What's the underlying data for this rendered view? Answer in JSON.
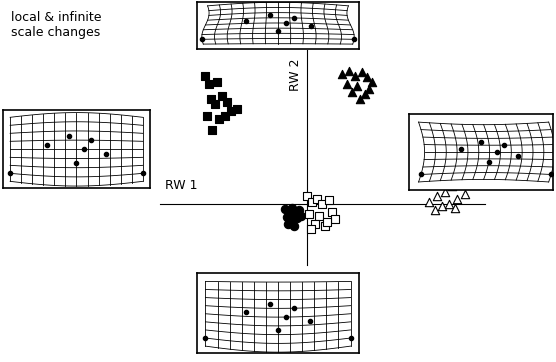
{
  "chart_data": {
    "type": "scatter",
    "title": "local & infinite\nscale changes",
    "x_label": "RW 1",
    "y_label": "RW 2",
    "xlim": [
      -1.47,
      1.78
    ],
    "ylim": [
      -0.61,
      1.54
    ],
    "xticks": [],
    "yticks": [],
    "tick_labels": false,
    "grid": false,
    "series": [
      {
        "marker": "s",
        "color": "black",
        "x": [
          -1.02,
          -0.98,
          -0.9,
          -0.96,
          -0.85,
          -0.92,
          -0.8,
          -0.76,
          -0.7,
          -0.88,
          -1.0,
          -0.95,
          -0.82
        ],
        "y": [
          1.28,
          1.2,
          1.22,
          1.05,
          1.08,
          1.0,
          1.02,
          0.93,
          0.95,
          0.85,
          0.88,
          0.74,
          0.88
        ]
      },
      {
        "marker": "^",
        "color": "black",
        "x": [
          0.35,
          0.42,
          0.48,
          0.55,
          0.6,
          0.65,
          0.4,
          0.5,
          0.58,
          0.45,
          0.62,
          0.53
        ],
        "y": [
          1.3,
          1.33,
          1.28,
          1.32,
          1.27,
          1.22,
          1.2,
          1.18,
          1.1,
          1.12,
          1.15,
          1.05
        ]
      },
      {
        "marker": "o",
        "color": "black",
        "x": [
          -0.22,
          -0.18,
          -0.15,
          -0.12,
          -0.2,
          -0.1,
          -0.16,
          -0.08,
          -0.19,
          -0.13,
          -0.06,
          -0.17
        ],
        "y": [
          -0.05,
          -0.08,
          -0.04,
          -0.1,
          -0.13,
          -0.14,
          -0.17,
          -0.06,
          -0.2,
          -0.22,
          -0.12,
          -0.09
        ]
      },
      {
        "marker": "s",
        "color": "white",
        "x": [
          0.0,
          0.05,
          0.1,
          0.15,
          0.22,
          0.02,
          0.12,
          0.25,
          0.08,
          0.18,
          0.28,
          0.04,
          0.2
        ],
        "y": [
          0.08,
          0.02,
          0.05,
          0.0,
          0.04,
          -0.1,
          -0.12,
          -0.08,
          -0.2,
          -0.22,
          -0.15,
          -0.25,
          -0.18
        ]
      },
      {
        "marker": "^",
        "color": "white",
        "x": [
          1.22,
          1.3,
          1.38,
          1.45,
          1.55,
          1.62,
          1.35,
          1.5,
          1.28,
          1.42,
          1.58,
          1.48
        ],
        "y": [
          0.02,
          0.08,
          0.12,
          0.18,
          0.22,
          0.25,
          -0.02,
          0.05,
          -0.06,
          0.0,
          0.1,
          -0.04
        ]
      }
    ]
  }
}
